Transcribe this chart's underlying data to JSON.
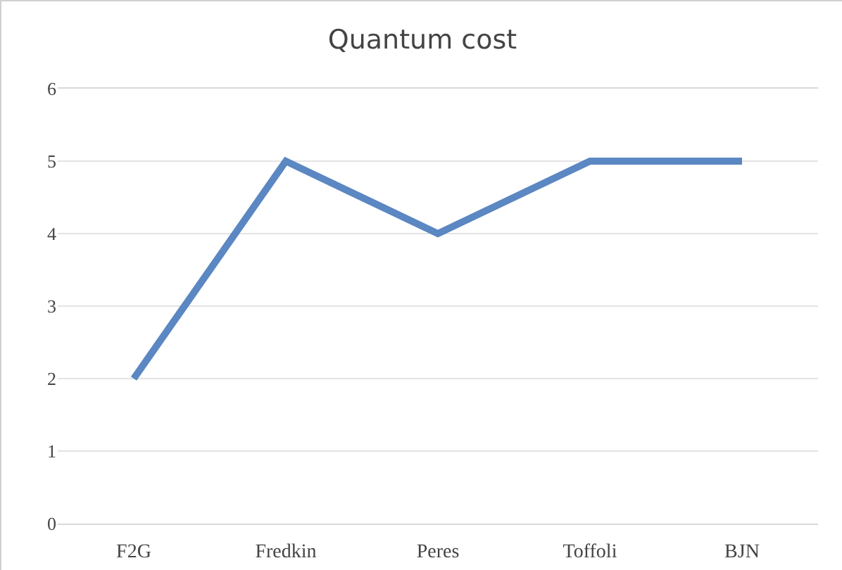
{
  "chart_data": {
    "type": "line",
    "title": "Quantum cost",
    "categories": [
      "F2G",
      "Fredkin",
      "Peres",
      "Toffoli",
      "BJN"
    ],
    "series": [
      {
        "color": "#5b87c2",
        "values": [
          2,
          5,
          4,
          5,
          5
        ]
      }
    ],
    "ylim": [
      0,
      6
    ],
    "yticks": [
      0,
      1,
      2,
      3,
      4,
      5,
      6
    ],
    "grid": "y",
    "marker": "none",
    "line_style": "solid"
  }
}
